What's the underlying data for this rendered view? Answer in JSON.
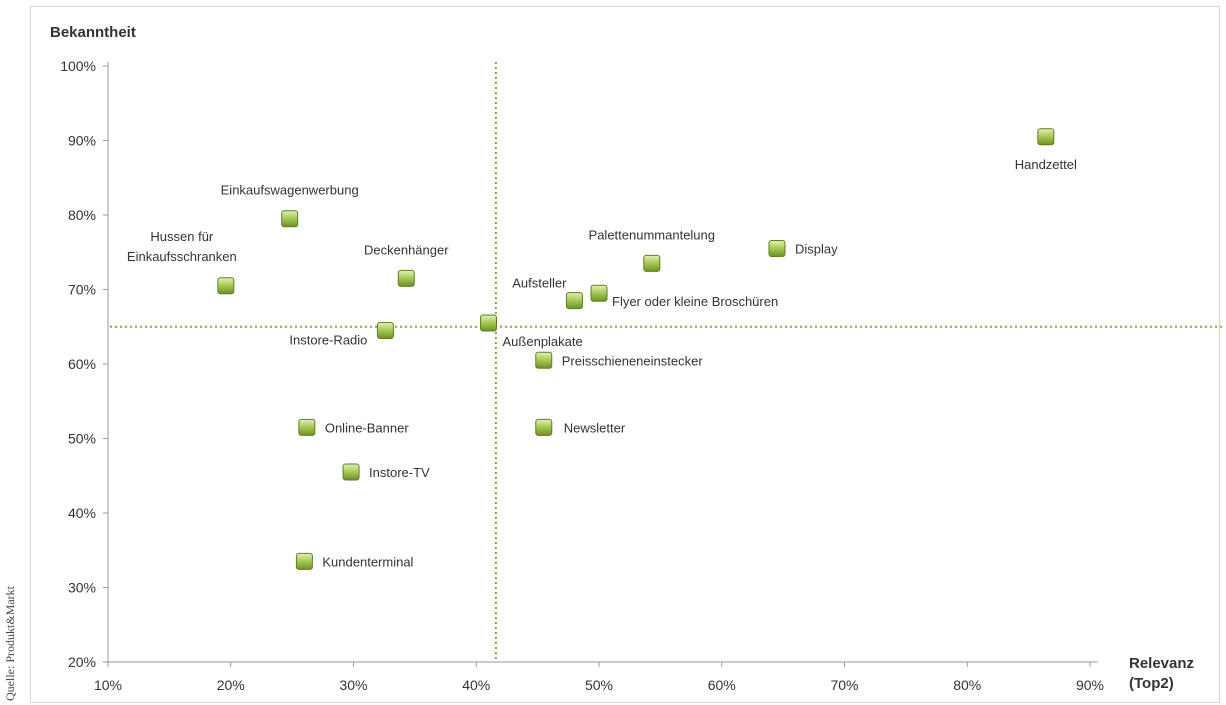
{
  "source_label": "Quelle: Produkt&Markt",
  "chart_data": {
    "type": "scatter",
    "title": "",
    "ylabel": "Bekanntheit",
    "xlabel": [
      "Relevanz",
      "(Top2)"
    ],
    "xlim": [
      10,
      90
    ],
    "ylim": [
      20,
      100
    ],
    "xticks": [
      "10%",
      "20%",
      "30%",
      "40%",
      "50%",
      "60%",
      "70%",
      "80%",
      "90%"
    ],
    "yticks": [
      "20%",
      "30%",
      "40%",
      "50%",
      "60%",
      "70%",
      "80%",
      "90%",
      "100%"
    ],
    "reference_x": 41.6,
    "reference_y": 65,
    "marker_color": "#9fc34a",
    "reference_line_color": "#8aa63c",
    "points": [
      {
        "label": [
          "Handzettel"
        ],
        "x": 86.4,
        "y": 90.5
      },
      {
        "label": [
          "Einkaufswagenwerbung"
        ],
        "x": 24.8,
        "y": 79.5
      },
      {
        "label": [
          "Hussen für",
          "Einkaufsschranken"
        ],
        "x": 19.6,
        "y": 70.5
      },
      {
        "label": [
          "Deckenhänger"
        ],
        "x": 34.3,
        "y": 71.5
      },
      {
        "label": [
          "Palettenummantelung"
        ],
        "x": 54.3,
        "y": 73.5
      },
      {
        "label": [
          "Display"
        ],
        "x": 64.5,
        "y": 75.5
      },
      {
        "label": [
          "Aufsteller"
        ],
        "x": 48.0,
        "y": 68.5
      },
      {
        "label": [
          "Flyer oder kleine Broschüren"
        ],
        "x": 50.0,
        "y": 69.5
      },
      {
        "label": [
          "Instore-Radio"
        ],
        "x": 32.6,
        "y": 64.5
      },
      {
        "label": [
          "Außenplakate"
        ],
        "x": 41.0,
        "y": 65.5
      },
      {
        "label": [
          "Preisschieneneinstecker"
        ],
        "x": 45.5,
        "y": 60.5
      },
      {
        "label": [
          "Online-Banner"
        ],
        "x": 26.2,
        "y": 51.5
      },
      {
        "label": [
          "Newsletter"
        ],
        "x": 45.5,
        "y": 51.5
      },
      {
        "label": [
          "Instore-TV"
        ],
        "x": 29.8,
        "y": 45.5
      },
      {
        "label": [
          "Kundenterminal"
        ],
        "x": 26.0,
        "y": 33.5
      }
    ]
  }
}
